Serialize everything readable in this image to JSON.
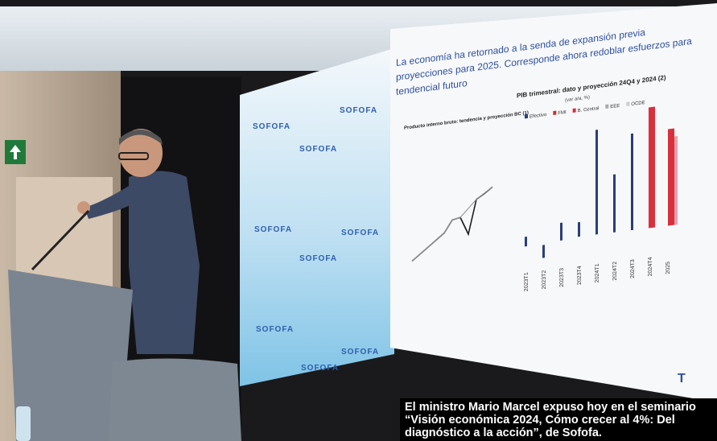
{
  "slide": {
    "heading": [
      "La economía ha retornado a la senda de expansión previa",
      "proyecciones para 2025. Corresponde ahora redoblar esfuerzos para",
      "tendencial futuro"
    ],
    "left_chart_title": "Producto interno bruto: tendencia y proyección BC (1)",
    "right_chart_title": "PIB trimestral: dato y proyección 24Q4 y 2024 (2)",
    "right_chart_subtitle": "(var a/a, %)",
    "legend": [
      "Efectivo",
      "FMI",
      "B. Central",
      "EEE",
      "OCDE"
    ],
    "x_labels": [
      "2023T1",
      "2023T2",
      "2023T3",
      "2023T4",
      "2024T1",
      "2024T2",
      "2024T3",
      "2024T4",
      "2025"
    ]
  },
  "logos": [
    "SOFOFA",
    "SOFOFA",
    "SOFOFA",
    "SOFOFA",
    "SOFOFA",
    "SOFOFA",
    "SOFOFA",
    "SOFOFA",
    "SOFOFA"
  ],
  "caption": {
    "lines": [
      "El ministro Mario Marcel expuso hoy en el seminario",
      "“Visión económica 2024, Cómo crecer al 4%: Del",
      "diagnóstico a la acción”, de Sofofa."
    ]
  }
}
